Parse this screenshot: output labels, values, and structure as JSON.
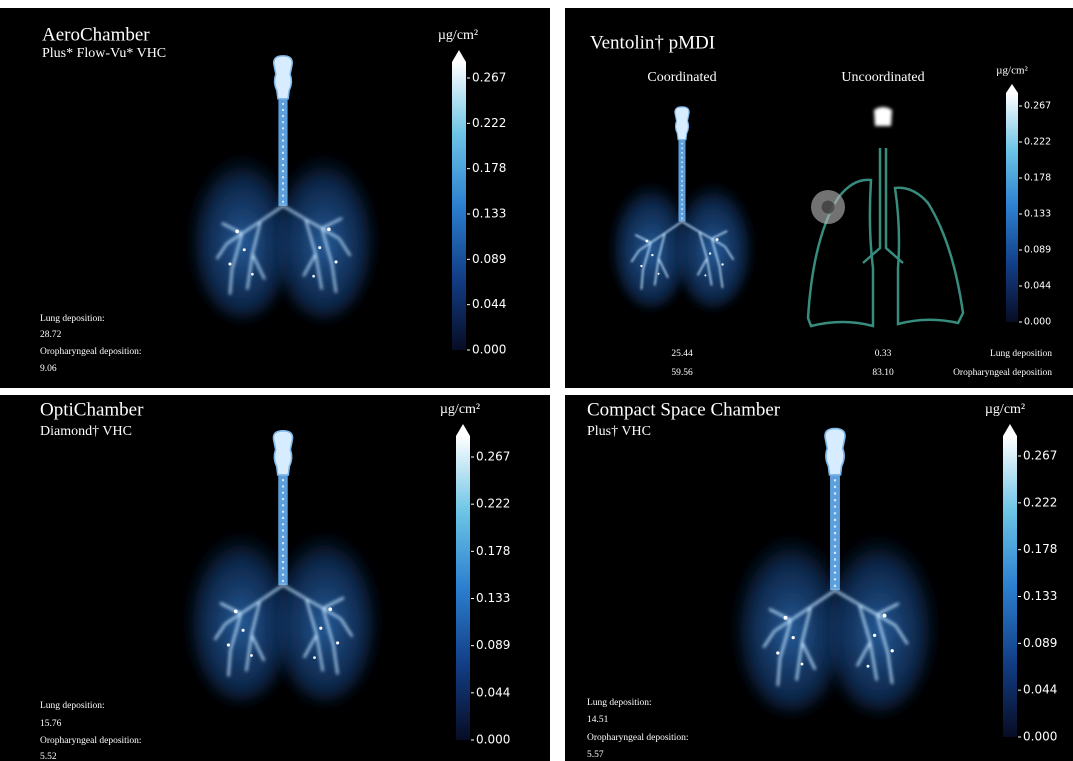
{
  "panels": [
    {
      "title": "AeroChamber",
      "subtitle": "Plus* Flow-Vu* VHC",
      "unit": "µg/cm²",
      "colorbar_ticks": [
        "0.267",
        "0.222",
        "0.178",
        "0.133",
        "0.089",
        "0.044",
        "0.000"
      ],
      "lung_label": "Lung deposition:",
      "lung_value": "28.72",
      "oro_label": "Oropharyngeal deposition:",
      "oro_value": "9.06"
    },
    {
      "title": "Ventolin† pMDI",
      "unit": "µg/cm²",
      "colorbar_ticks": [
        "0.267",
        "0.222",
        "0.178",
        "0.133",
        "0.089",
        "0.044",
        "0.000"
      ],
      "columns": [
        {
          "label": "Coordinated",
          "lung_value": "25.44",
          "oro_value": "59.56"
        },
        {
          "label": "Uncoordinated",
          "lung_value": "0.33",
          "oro_value": "83.10"
        }
      ],
      "lung_label": "Lung deposition",
      "oro_label": "Oropharyngeal deposition"
    },
    {
      "title": "OptiChamber",
      "subtitle": "Diamond† VHC",
      "unit": "µg/cm²",
      "colorbar_ticks": [
        "0.267",
        "0.222",
        "0.178",
        "0.133",
        "0.089",
        "0.044",
        "0.000"
      ],
      "lung_label": "Lung deposition:",
      "lung_value": "15.76",
      "oro_label": "Oropharyngeal deposition:",
      "oro_value": "5.52"
    },
    {
      "title": "Compact Space Chamber",
      "subtitle": "Plus† VHC",
      "unit": "µg/cm²",
      "colorbar_ticks": [
        "0.267",
        "0.222",
        "0.178",
        "0.133",
        "0.089",
        "0.044",
        "0.000"
      ],
      "lung_label": "Lung deposition:",
      "lung_value": "14.51",
      "oro_label": "Oropharyngeal deposition:",
      "oro_value": "5.57"
    }
  ]
}
